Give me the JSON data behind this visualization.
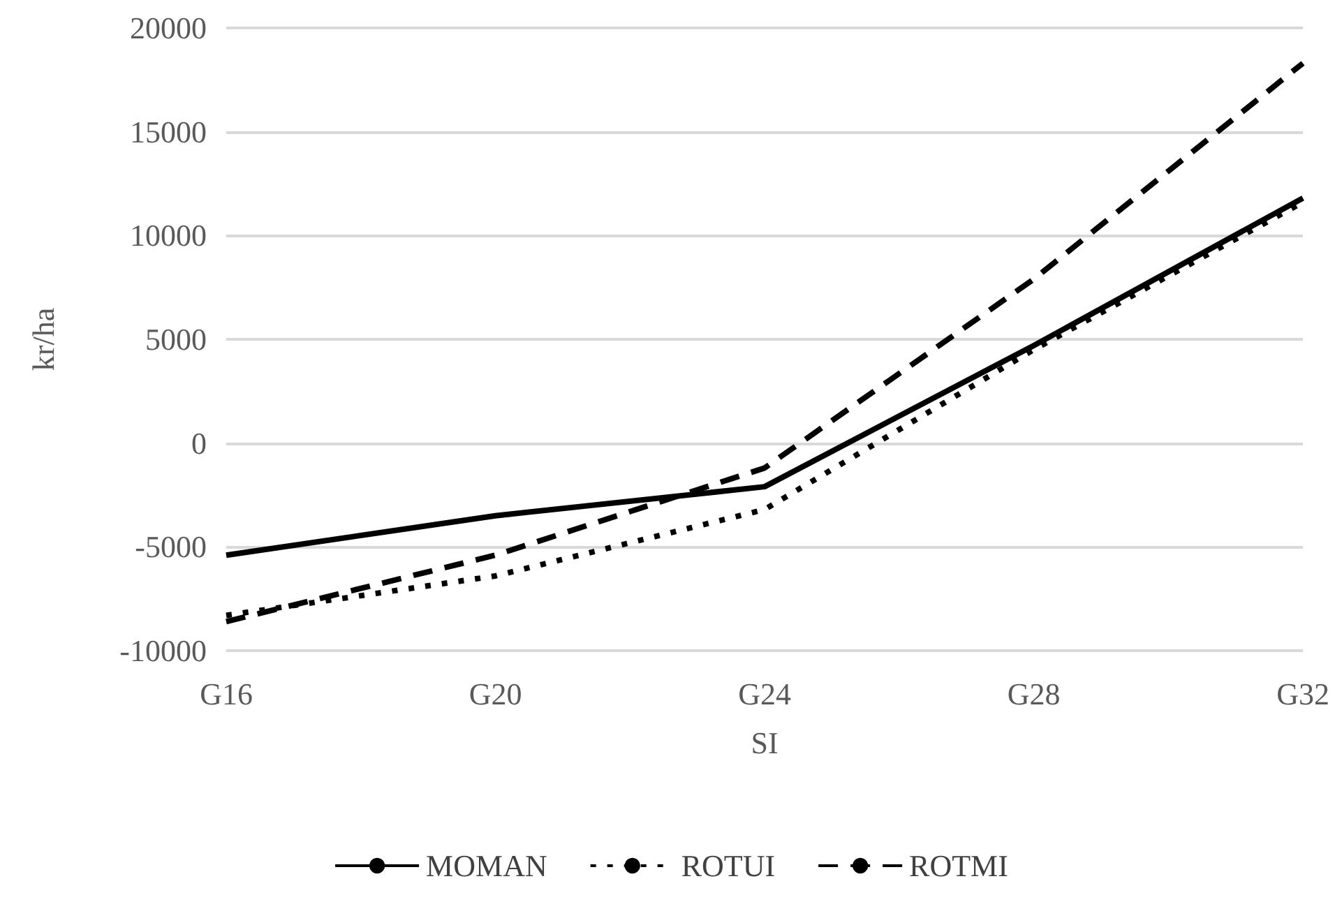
{
  "chart_data": {
    "type": "line",
    "xlabel": "SI",
    "ylabel": "kr/ha",
    "categories": [
      "G16",
      "G20",
      "G24",
      "G28",
      "G32"
    ],
    "series": [
      {
        "name": "MOMAN",
        "color": "#000000",
        "line_style": "solid",
        "values": [
          -5400,
          -3500,
          -2100,
          4700,
          11800
        ]
      },
      {
        "name": "ROTUI",
        "color": "#000000",
        "line_style": "dotted",
        "values": [
          -8300,
          -6400,
          -3200,
          4500,
          11600
        ]
      },
      {
        "name": "ROTMI",
        "color": "#000000",
        "line_style": "dashed",
        "values": [
          -8600,
          -5400,
          -1200,
          7900,
          18300
        ]
      }
    ],
    "ylim": [
      -10000,
      20000
    ],
    "yticks": [
      -10000,
      -5000,
      0,
      5000,
      10000,
      15000,
      20000
    ],
    "grid": "y",
    "legend": "bottom",
    "marker": "none"
  }
}
